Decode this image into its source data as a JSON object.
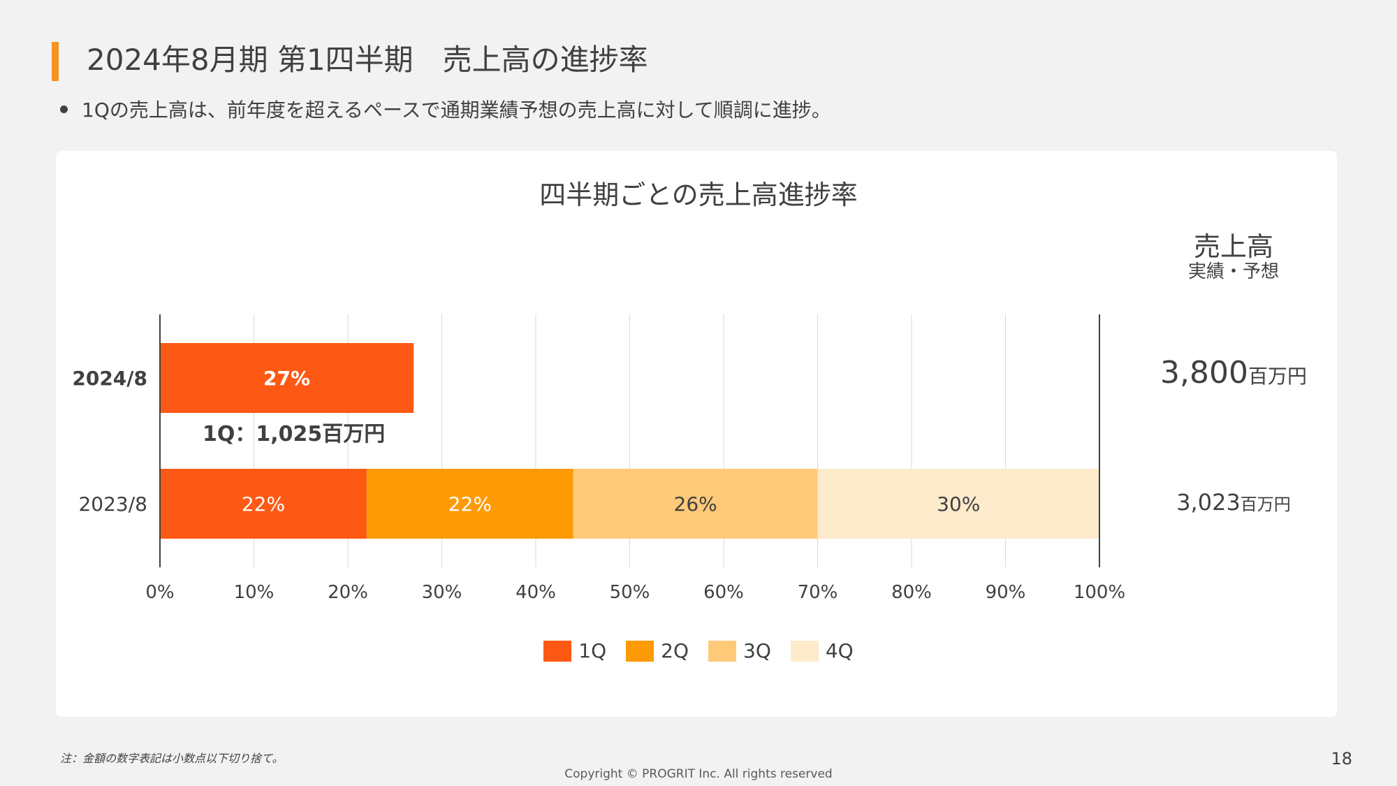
{
  "slide": {
    "title": "2024年8月期 第1四半期　売上高の進捗率",
    "bullet": "1Qの売上高は、前年度を超えるペースで通期業績予想の売上高に対して順調に進捗。",
    "footnote": "注：金額の数字表記は小数点以下切り捨て。",
    "copyright": "Copyright © PROGRIT Inc. All rights reserved",
    "page_number": "18",
    "accent_color": "#f7931e"
  },
  "sales_panel": {
    "heading": "売上高",
    "subheading": "実績・予想",
    "rows": [
      {
        "year": "2024/8",
        "value": "3,800",
        "unit": "百万円"
      },
      {
        "year": "2023/8",
        "value": "3,023",
        "unit": "百万円"
      }
    ]
  },
  "annotation": {
    "q1_label": "1Q：1,025百万円"
  },
  "chart_data": {
    "type": "bar",
    "orientation": "horizontal",
    "stacked": true,
    "title": "四半期ごとの売上高進捗率",
    "categories": [
      "2024/8",
      "2023/8"
    ],
    "category_label_bold": [
      true,
      false
    ],
    "xlim": [
      0,
      100
    ],
    "x_ticks": [
      "0%",
      "10%",
      "20%",
      "30%",
      "40%",
      "50%",
      "60%",
      "70%",
      "80%",
      "90%",
      "100%"
    ],
    "grid": true,
    "legend_position": "bottom-center",
    "series": [
      {
        "name": "1Q",
        "color": "#fe5914",
        "label_color": "#ffffff",
        "values": [
          27,
          22
        ],
        "labels": [
          "27%",
          "22%"
        ]
      },
      {
        "name": "2Q",
        "color": "#fe9a05",
        "label_color": "#ffffff",
        "values": [
          0,
          22
        ],
        "labels": [
          "",
          "22%"
        ]
      },
      {
        "name": "3Q",
        "color": "#fec978",
        "label_color": "#404040",
        "values": [
          0,
          26
        ],
        "labels": [
          "",
          "26%"
        ]
      },
      {
        "name": "4Q",
        "color": "#feebcc",
        "label_color": "#404040",
        "values": [
          0,
          30
        ],
        "labels": [
          "",
          "30%"
        ]
      }
    ]
  }
}
